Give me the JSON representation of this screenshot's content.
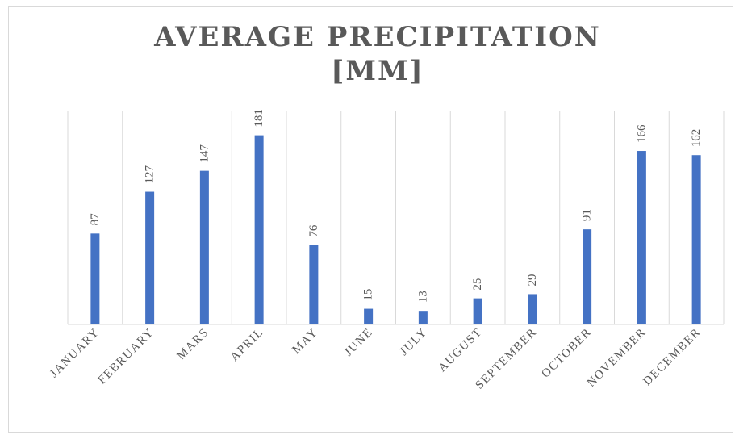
{
  "chart_data": {
    "type": "bar",
    "title_lines": [
      "AVERAGE PRECIPITATION",
      "[MM]"
    ],
    "categories": [
      "JANUARY",
      "FEBRUARY",
      "MARS",
      "APRIL",
      "MAY",
      "JUNE",
      "JULY",
      "AUGUST",
      "SEPTEMBER",
      "OCTOBER",
      "NOVEMBER",
      "DECEMBER"
    ],
    "values": [
      87,
      127,
      147,
      181,
      76,
      15,
      13,
      25,
      29,
      91,
      166,
      162
    ],
    "ylim": [
      0,
      200
    ],
    "grid": "vertical",
    "legend": "none",
    "bar_color": "#4472c4",
    "gridline_color": "#d9d9d9",
    "text_color": "#595959"
  }
}
